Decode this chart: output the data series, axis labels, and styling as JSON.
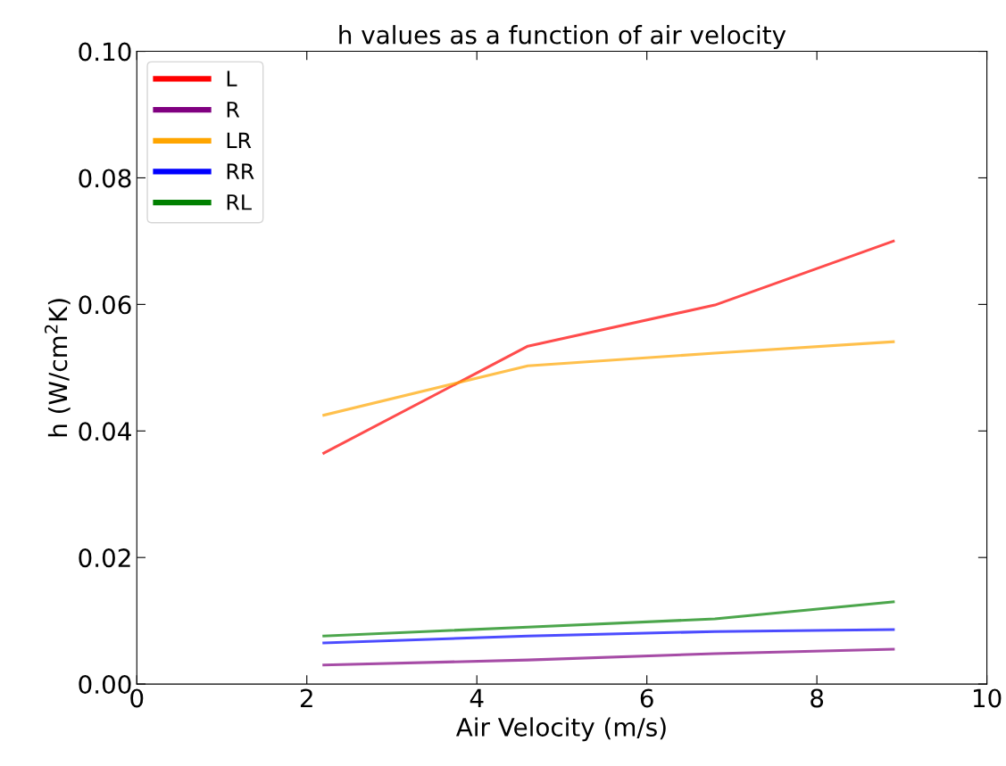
{
  "chart_data": {
    "type": "line",
    "title": "h values as a function of air velocity",
    "xlabel": "Air Velocity (m/s)",
    "ylabel": "h (W/cm$^{2}$K)",
    "x": [
      2.2,
      4.6,
      6.8,
      8.9
    ],
    "series": [
      {
        "name": "L",
        "color": "#ff0000",
        "values": [
          0.0365,
          0.0534,
          0.0599,
          0.07
        ]
      },
      {
        "name": "R",
        "color": "#800080",
        "values": [
          0.003,
          0.0038,
          0.0048,
          0.0055
        ]
      },
      {
        "name": "LR",
        "color": "#ffa500",
        "values": [
          0.0425,
          0.0503,
          0.0523,
          0.0541
        ]
      },
      {
        "name": "RR",
        "color": "#0000ff",
        "values": [
          0.0065,
          0.0076,
          0.0083,
          0.0086
        ]
      },
      {
        "name": "RL",
        "color": "#008000",
        "values": [
          0.0076,
          0.009,
          0.0103,
          0.013
        ]
      }
    ],
    "xlim": [
      0,
      10
    ],
    "ylim": [
      0,
      0.1
    ],
    "xticks": [
      0,
      2,
      4,
      6,
      8,
      10
    ],
    "yticks": [
      {
        "value": 0,
        "label": "0.00"
      },
      {
        "value": 0.02,
        "label": "0.02"
      },
      {
        "value": 0.04,
        "label": "0.04"
      },
      {
        "value": 0.06,
        "label": "0.06"
      },
      {
        "value": 0.08,
        "label": "0.08"
      },
      {
        "value": 0.1,
        "label": "0.10"
      }
    ],
    "grid": false,
    "legend": "top left",
    "marker": "none",
    "line_style": "solid"
  }
}
